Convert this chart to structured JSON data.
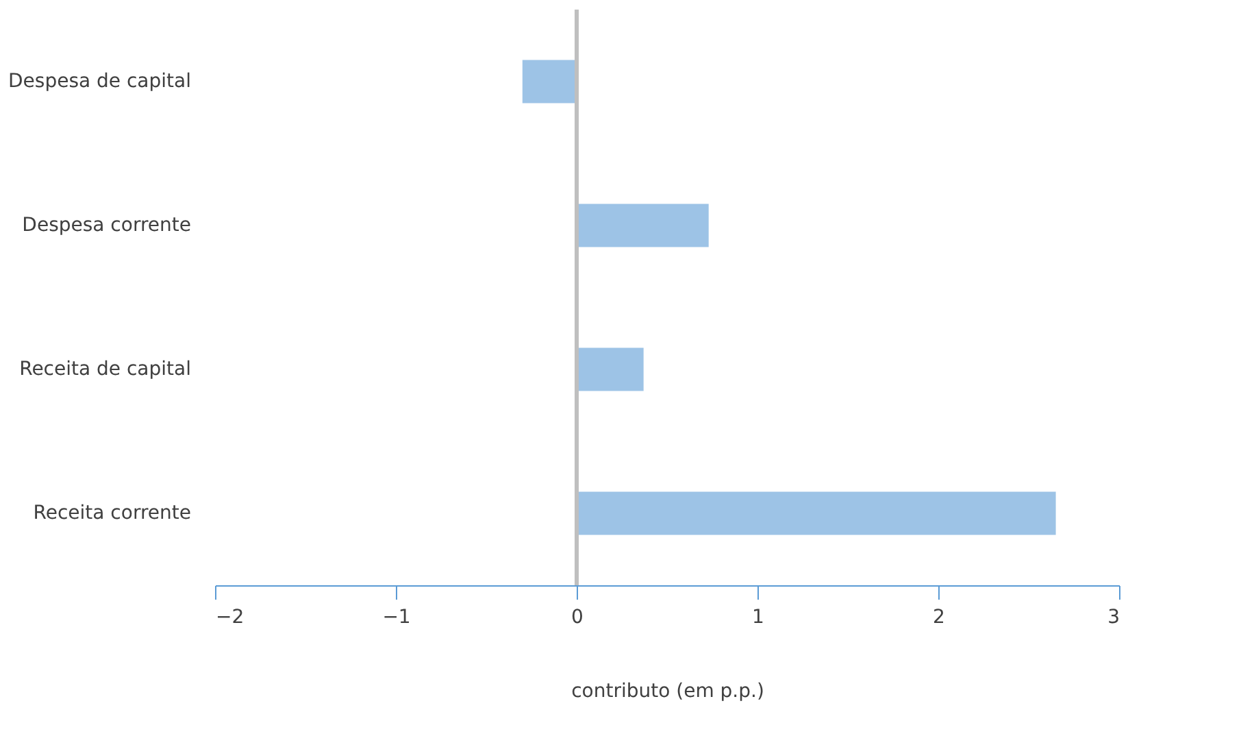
{
  "chart_data": {
    "type": "bar",
    "orientation": "horizontal",
    "xlabel": "contributo (em p.p.)",
    "categories": [
      "Despesa de capital",
      "Despesa corrente",
      "Receita de capital",
      "Receita corrente"
    ],
    "series": [
      {
        "color": "#9dc3e6",
        "values": [
          -0.3,
          0.73,
          0.37,
          2.65
        ]
      }
    ],
    "xlim": [
      -2,
      3
    ],
    "xticks": [
      -2,
      -1,
      0,
      1,
      2,
      3
    ],
    "grid": false,
    "ref_lines": [
      {
        "axis": "x",
        "value": 0,
        "color": "#bfbfbf"
      }
    ]
  }
}
